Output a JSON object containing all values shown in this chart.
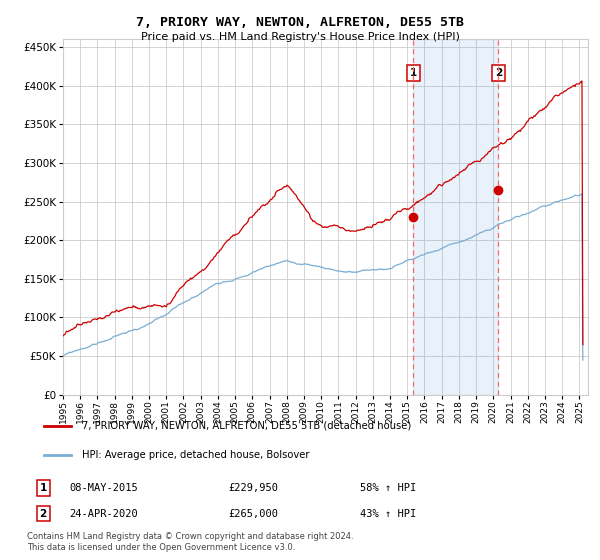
{
  "title": "7, PRIORY WAY, NEWTON, ALFRETON, DE55 5TB",
  "subtitle": "Price paid vs. HM Land Registry's House Price Index (HPI)",
  "xlim_start": 1995.0,
  "xlim_end": 2025.5,
  "ylim": [
    0,
    460000
  ],
  "yticks": [
    0,
    50000,
    100000,
    150000,
    200000,
    250000,
    300000,
    350000,
    400000,
    450000
  ],
  "purchase1_x": 2015.35,
  "purchase1_y": 229950,
  "purchase2_x": 2020.3,
  "purchase2_y": 265000,
  "purchase1_label": "08-MAY-2015",
  "purchase1_price": "£229,950",
  "purchase1_hpi": "58% ↑ HPI",
  "purchase2_label": "24-APR-2020",
  "purchase2_price": "£265,000",
  "purchase2_hpi": "43% ↑ HPI",
  "shade_alpha": 0.12,
  "shade_color": "#4a90d9",
  "red_line_color": "#cc0000",
  "blue_line_color": "#7bafd4",
  "dot_color": "#cc0000",
  "vline_color": "#ff6666",
  "grid_color": "#cccccc",
  "background_color": "#ffffff",
  "legend1": "7, PRIORY WAY, NEWTON, ALFRETON, DE55 5TB (detached house)",
  "legend2": "HPI: Average price, detached house, Bolsover",
  "footnote1": "Contains HM Land Registry data © Crown copyright and database right 2024.",
  "footnote2": "This data is licensed under the Open Government Licence v3.0."
}
